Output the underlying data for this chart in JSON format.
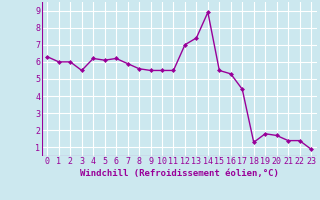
{
  "x": [
    0,
    1,
    2,
    3,
    4,
    5,
    6,
    7,
    8,
    9,
    10,
    11,
    12,
    13,
    14,
    15,
    16,
    17,
    18,
    19,
    20,
    21,
    22,
    23
  ],
  "y": [
    6.3,
    6.0,
    6.0,
    5.5,
    6.2,
    6.1,
    6.2,
    5.9,
    5.6,
    5.5,
    5.5,
    5.5,
    7.0,
    7.4,
    8.9,
    5.5,
    5.3,
    4.4,
    1.3,
    1.8,
    1.7,
    1.4,
    1.4,
    0.9
  ],
  "line_color": "#990099",
  "marker": "D",
  "marker_size": 2.0,
  "bg_color": "#cce8ef",
  "grid_color": "#ffffff",
  "xlabel": "Windchill (Refroidissement éolien,°C)",
  "ylabel_ticks": [
    1,
    2,
    3,
    4,
    5,
    6,
    7,
    8,
    9
  ],
  "xlabel_ticks": [
    0,
    1,
    2,
    3,
    4,
    5,
    6,
    7,
    8,
    9,
    10,
    11,
    12,
    13,
    14,
    15,
    16,
    17,
    18,
    19,
    20,
    21,
    22,
    23
  ],
  "xlim": [
    -0.5,
    23.5
  ],
  "ylim": [
    0.5,
    9.5
  ],
  "xlabel_fontsize": 6.5,
  "tick_fontsize": 6.0,
  "line_width": 1.0,
  "label_color": "#990099"
}
